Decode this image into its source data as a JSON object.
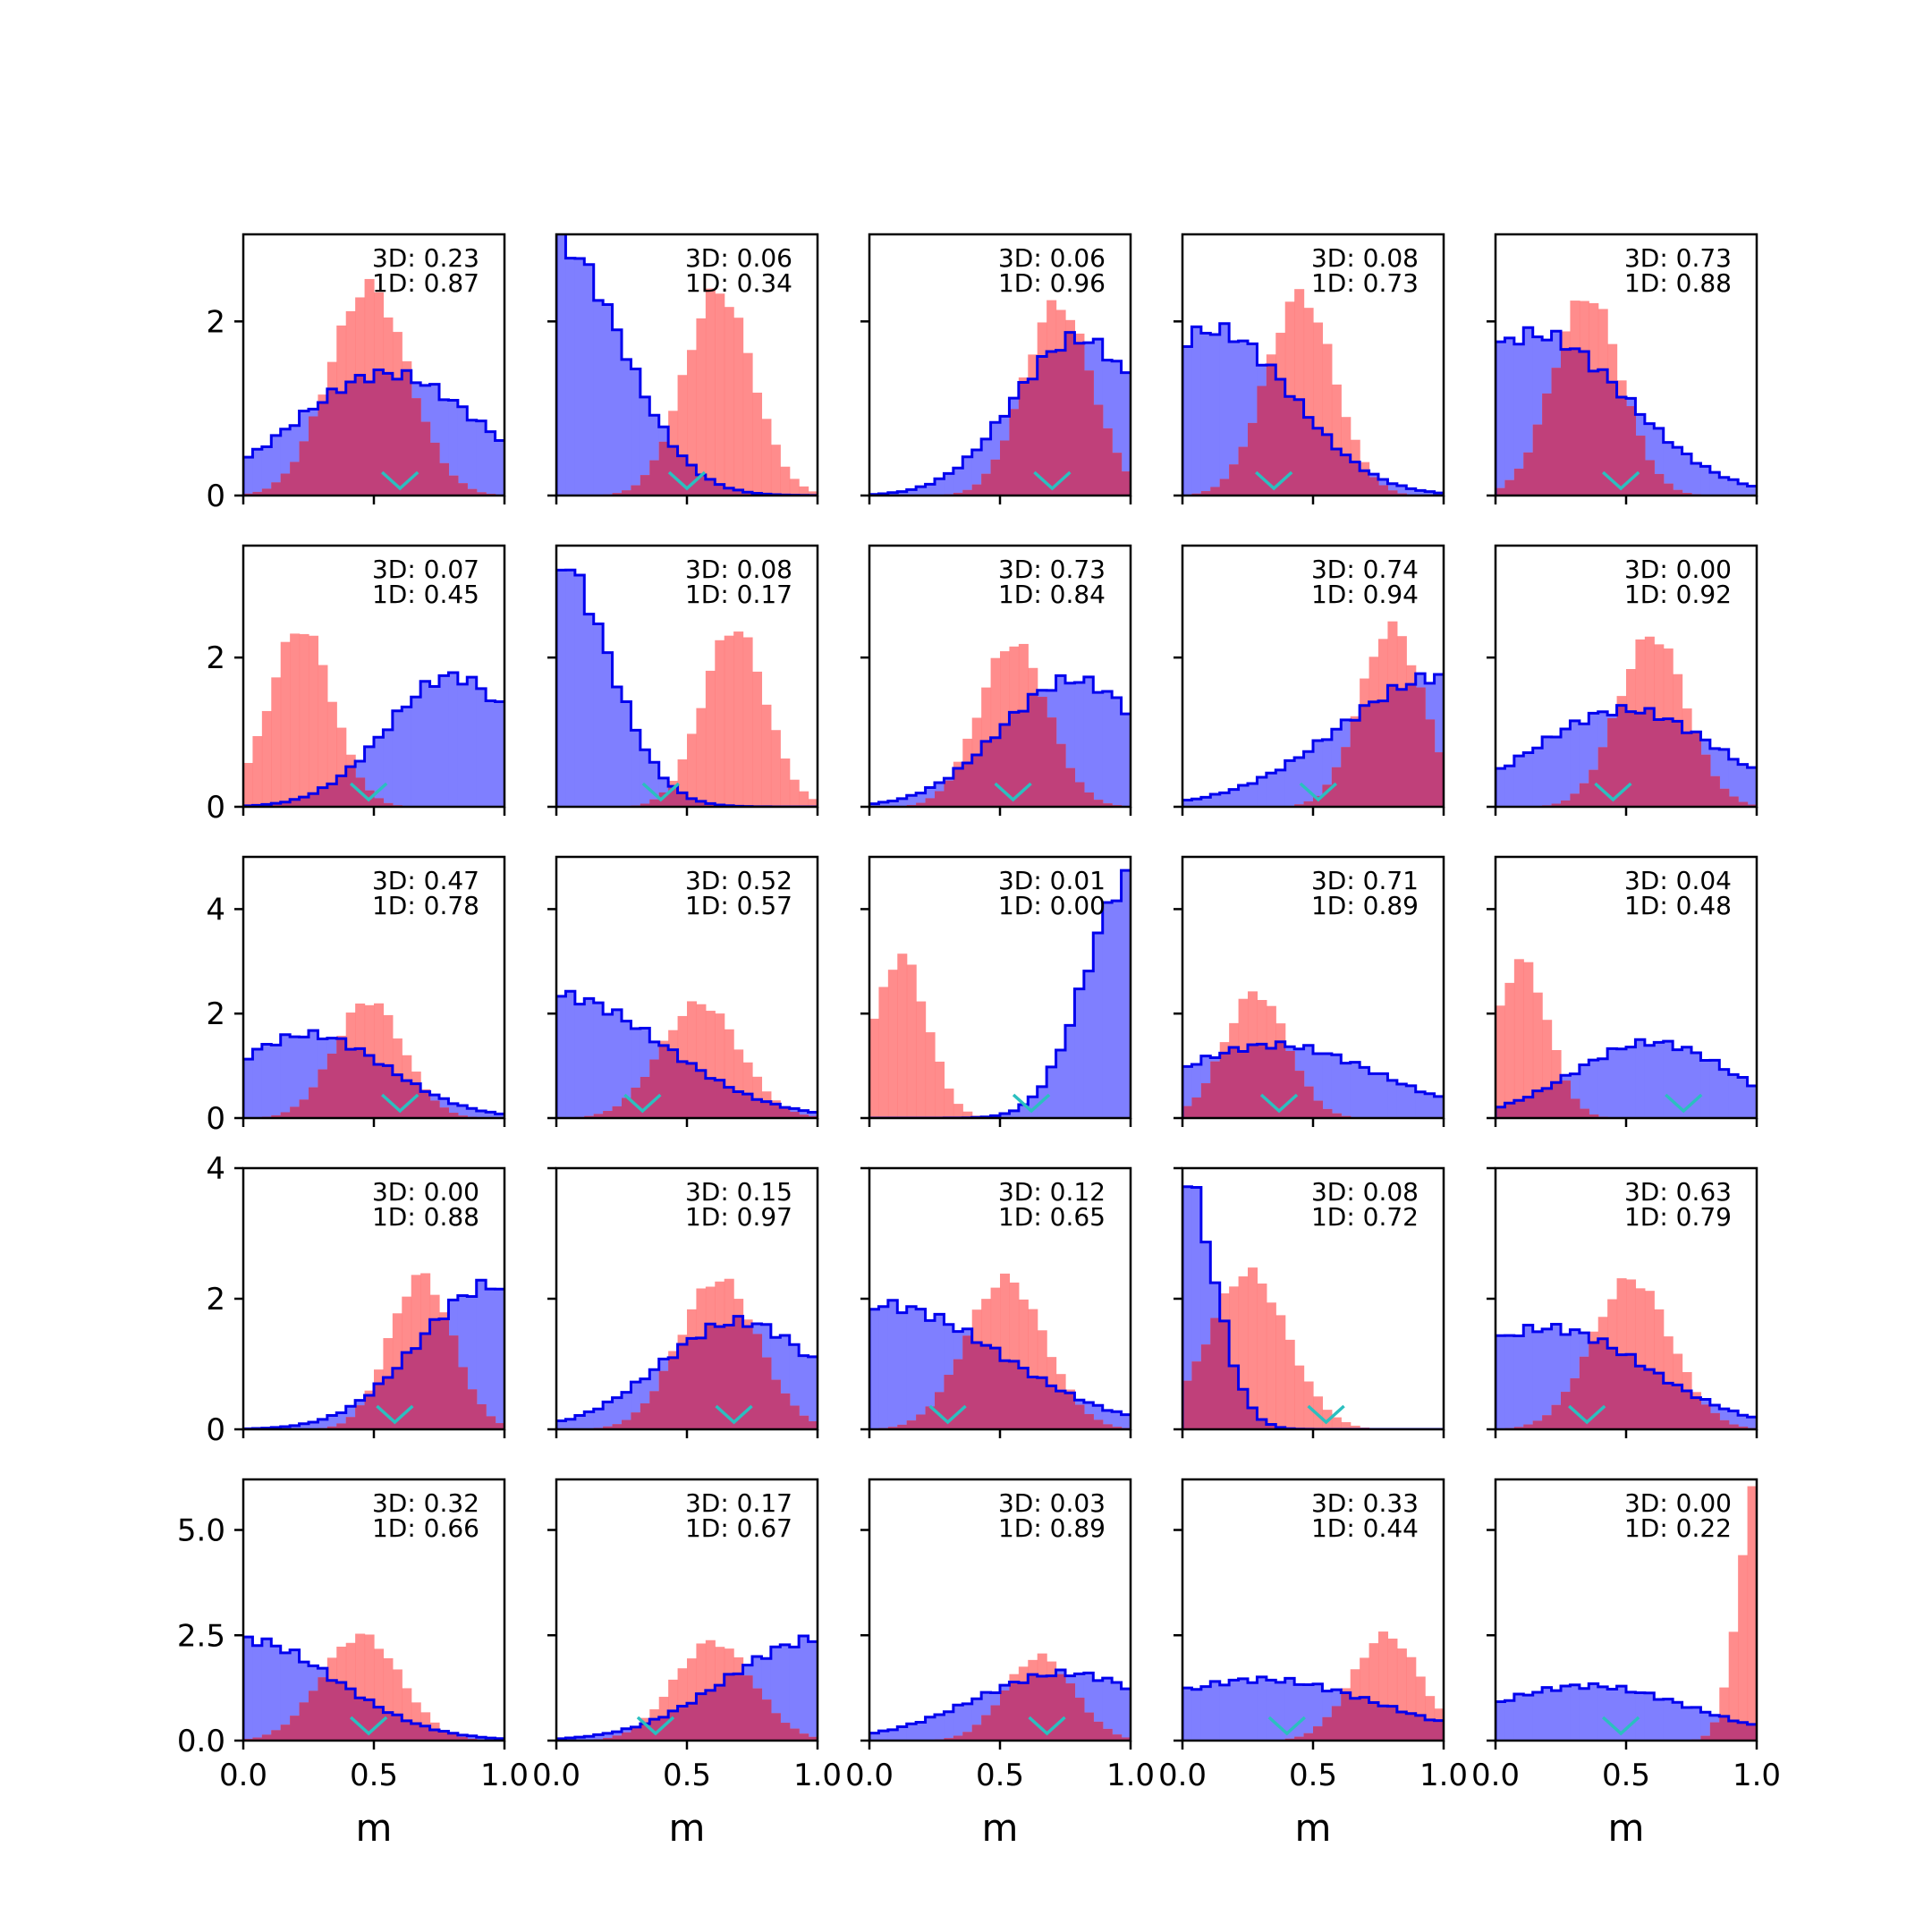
{
  "chart_data": {
    "type": "histogram-grid",
    "rows": 5,
    "cols": 5,
    "xlim": [
      0,
      1
    ],
    "xticks": [
      "0.0",
      "0.5",
      "1.0"
    ],
    "xlabel": "m",
    "row_ylims": [
      [
        0,
        3.0
      ],
      [
        0,
        3.5
      ],
      [
        0,
        5.0
      ],
      [
        0,
        4.0
      ],
      [
        0,
        6.2
      ]
    ],
    "row_yticks": [
      [
        "0",
        "2"
      ],
      [
        "0",
        "2"
      ],
      [
        "0",
        "2",
        "4"
      ],
      [
        "0",
        "2",
        "4"
      ],
      [
        "0.0",
        "2.5",
        "5.0"
      ]
    ],
    "colors": {
      "blue_fill": "#7f7fff",
      "blue_edge": "#0000ee",
      "red_fill": "#ff7f7f",
      "overlap": "#c0407a",
      "marker": "#2bbfbf"
    },
    "panels": [
      {
        "label3d": "3D: 0.23",
        "label1d": "1D: 0.87",
        "marker": 0.6,
        "blue": {
          "mu": 0.55,
          "sd": 0.35,
          "peak": 1.4
        },
        "red": {
          "mu": 0.48,
          "sd": 0.15,
          "peak": 2.4
        }
      },
      {
        "label3d": "3D: 0.06",
        "label1d": "1D: 0.34",
        "marker": 0.5,
        "blue": {
          "mu": 0.0,
          "sd": 0.25,
          "peak": 2.9
        },
        "red": {
          "mu": 0.62,
          "sd": 0.13,
          "peak": 2.35
        }
      },
      {
        "label3d": "3D: 0.06",
        "label1d": "1D: 0.96",
        "marker": 0.7,
        "blue": {
          "mu": 0.8,
          "sd": 0.25,
          "peak": 1.8
        },
        "red": {
          "mu": 0.72,
          "sd": 0.13,
          "peak": 2.2
        }
      },
      {
        "label3d": "3D: 0.08",
        "label1d": "1D: 0.73",
        "marker": 0.35,
        "blue": {
          "mu": 0.12,
          "sd": 0.3,
          "peak": 1.9
        },
        "red": {
          "mu": 0.45,
          "sd": 0.13,
          "peak": 2.3
        }
      },
      {
        "label3d": "3D: 0.73",
        "label1d": "1D: 0.88",
        "marker": 0.48,
        "blue": {
          "mu": 0.15,
          "sd": 0.35,
          "peak": 1.85
        },
        "red": {
          "mu": 0.35,
          "sd": 0.13,
          "peak": 2.3
        }
      },
      {
        "label3d": "3D: 0.07",
        "label1d": "1D: 0.45",
        "marker": 0.48,
        "blue": {
          "mu": 0.8,
          "sd": 0.25,
          "peak": 1.75
        },
        "red": {
          "mu": 0.22,
          "sd": 0.12,
          "peak": 2.4
        }
      },
      {
        "label3d": "3D: 0.08",
        "label1d": "1D: 0.17",
        "marker": 0.4,
        "blue": {
          "mu": 0.0,
          "sd": 0.2,
          "peak": 3.3
        },
        "red": {
          "mu": 0.68,
          "sd": 0.12,
          "peak": 2.4
        }
      },
      {
        "label3d": "3D: 0.73",
        "label1d": "1D: 0.84",
        "marker": 0.55,
        "blue": {
          "mu": 0.78,
          "sd": 0.28,
          "peak": 1.7
        },
        "red": {
          "mu": 0.55,
          "sd": 0.13,
          "peak": 2.2
        }
      },
      {
        "label3d": "3D: 0.74",
        "label1d": "1D: 0.94",
        "marker": 0.52,
        "blue": {
          "mu": 1.0,
          "sd": 0.4,
          "peak": 1.75
        },
        "red": {
          "mu": 0.8,
          "sd": 0.12,
          "peak": 2.4
        }
      },
      {
        "label3d": "3D: 0.00",
        "label1d": "1D: 0.92",
        "marker": 0.45,
        "blue": {
          "mu": 0.5,
          "sd": 0.35,
          "peak": 1.3
        },
        "red": {
          "mu": 0.6,
          "sd": 0.13,
          "peak": 2.3
        }
      },
      {
        "label3d": "3D: 0.47",
        "label1d": "1D: 0.78",
        "marker": 0.6,
        "blue": {
          "mu": 0.25,
          "sd": 0.3,
          "peak": 1.6
        },
        "red": {
          "mu": 0.48,
          "sd": 0.13,
          "peak": 2.25
        }
      },
      {
        "label3d": "3D: 0.52",
        "label1d": "1D: 0.57",
        "marker": 0.33,
        "blue": {
          "mu": 0.0,
          "sd": 0.4,
          "peak": 2.35
        },
        "red": {
          "mu": 0.55,
          "sd": 0.15,
          "peak": 2.2
        }
      },
      {
        "label3d": "3D: 0.01",
        "label1d": "1D: 0.00",
        "marker": 0.62,
        "blue": {
          "mu": 1.0,
          "sd": 0.17,
          "peak": 4.6
        },
        "red": {
          "mu": 0.12,
          "sd": 0.1,
          "peak": 3.1
        }
      },
      {
        "label3d": "3D: 0.71",
        "label1d": "1D: 0.89",
        "marker": 0.37,
        "blue": {
          "mu": 0.35,
          "sd": 0.4,
          "peak": 1.4
        },
        "red": {
          "mu": 0.28,
          "sd": 0.12,
          "peak": 2.4
        }
      },
      {
        "label3d": "3D: 0.04",
        "label1d": "1D: 0.48",
        "marker": 0.72,
        "blue": {
          "mu": 0.6,
          "sd": 0.3,
          "peak": 1.45
        },
        "red": {
          "mu": 0.1,
          "sd": 0.1,
          "peak": 3.0
        }
      },
      {
        "label3d": "3D: 0.00",
        "label1d": "1D: 0.88",
        "marker": 0.58,
        "blue": {
          "mu": 0.95,
          "sd": 0.28,
          "peak": 2.2
        },
        "red": {
          "mu": 0.68,
          "sd": 0.12,
          "peak": 2.35
        }
      },
      {
        "label3d": "3D: 0.15",
        "label1d": "1D: 0.97",
        "marker": 0.68,
        "blue": {
          "mu": 0.7,
          "sd": 0.3,
          "peak": 1.65
        },
        "red": {
          "mu": 0.62,
          "sd": 0.15,
          "peak": 2.3
        }
      },
      {
        "label3d": "3D: 0.12",
        "label1d": "1D: 0.65",
        "marker": 0.3,
        "blue": {
          "mu": 0.05,
          "sd": 0.45,
          "peak": 1.9
        },
        "red": {
          "mu": 0.52,
          "sd": 0.15,
          "peak": 2.3
        }
      },
      {
        "label3d": "3D: 0.08",
        "label1d": "1D: 0.72",
        "marker": 0.55,
        "blue": {
          "mu": 0.0,
          "sd": 0.12,
          "peak": 3.9
        },
        "red": {
          "mu": 0.25,
          "sd": 0.15,
          "peak": 2.4
        }
      },
      {
        "label3d": "3D: 0.63",
        "label1d": "1D: 0.79",
        "marker": 0.35,
        "blue": {
          "mu": 0.2,
          "sd": 0.38,
          "peak": 1.55
        },
        "red": {
          "mu": 0.52,
          "sd": 0.15,
          "peak": 2.3
        }
      },
      {
        "label3d": "3D: 0.32",
        "label1d": "1D: 0.66",
        "marker": 0.48,
        "blue": {
          "mu": 0.0,
          "sd": 0.35,
          "peak": 2.4
        },
        "red": {
          "mu": 0.45,
          "sd": 0.15,
          "peak": 2.5
        }
      },
      {
        "label3d": "3D: 0.17",
        "label1d": "1D: 0.67",
        "marker": 0.38,
        "blue": {
          "mu": 1.0,
          "sd": 0.35,
          "peak": 2.4
        },
        "red": {
          "mu": 0.6,
          "sd": 0.15,
          "peak": 2.35
        }
      },
      {
        "label3d": "3D: 0.03",
        "label1d": "1D: 0.89",
        "marker": 0.68,
        "blue": {
          "mu": 0.75,
          "sd": 0.35,
          "peak": 1.6
        },
        "red": {
          "mu": 0.65,
          "sd": 0.13,
          "peak": 2.0
        }
      },
      {
        "label3d": "3D: 0.33",
        "label1d": "1D: 0.44",
        "marker": 0.4,
        "blue": {
          "mu": 0.3,
          "sd": 0.45,
          "peak": 1.45
        },
        "red": {
          "mu": 0.78,
          "sd": 0.13,
          "peak": 2.5
        }
      },
      {
        "label3d": "3D: 0.00",
        "label1d": "1D: 0.22",
        "marker": 0.48,
        "blue": {
          "mu": 0.35,
          "sd": 0.4,
          "peak": 1.3
        },
        "red": {
          "mu": 1.0,
          "sd": 0.07,
          "peak": 6.0
        }
      }
    ]
  }
}
